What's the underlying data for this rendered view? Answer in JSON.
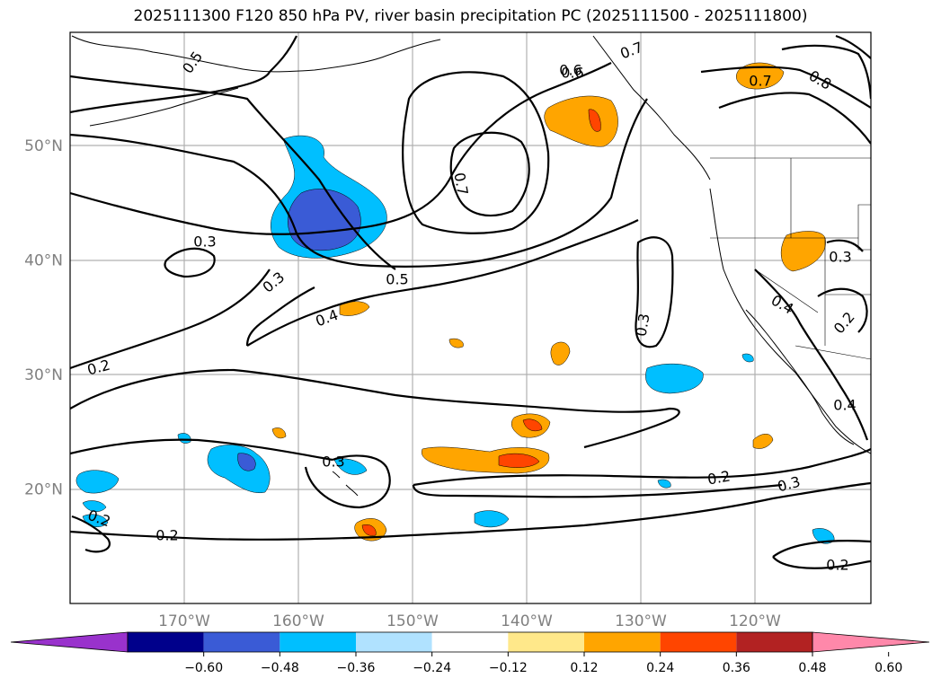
{
  "title": "2025111300 F120 850 hPa PV, river basin precipitation PC (2025111500 - 2025111800)",
  "lat_labels": [
    {
      "text": "50°N",
      "lat": 50
    },
    {
      "text": "40°N",
      "lat": 40
    },
    {
      "text": "30°N",
      "lat": 30
    },
    {
      "text": "20°N",
      "lat": 20
    }
  ],
  "lon_labels": [
    {
      "text": "170°W",
      "lon": -170
    },
    {
      "text": "160°W",
      "lon": -160
    },
    {
      "text": "150°W",
      "lon": -150
    },
    {
      "text": "140°W",
      "lon": -140
    },
    {
      "text": "130°W",
      "lon": -130
    },
    {
      "text": "120°W",
      "lon": -120
    }
  ],
  "contour_labels": [
    "0.5",
    "0.7",
    "0.6",
    "0.7",
    "0.8",
    "0.7",
    "0.3",
    "0.3",
    "0.5",
    "0.4",
    "0.2",
    "0.3",
    "0.4",
    "0.2",
    "0.3",
    "0.2",
    "0.3",
    "0.2",
    "0.2",
    "0.2",
    "0.4",
    "0.3",
    "0.6"
  ],
  "colorbar": {
    "ticks": [
      "−0.60",
      "−0.48",
      "−0.36",
      "−0.24",
      "−0.12",
      "0.12",
      "0.24",
      "0.36",
      "0.48",
      "0.60"
    ],
    "colors": [
      "#9932cc",
      "#00008b",
      "#3a5bd6",
      "#00bfff",
      "#b0e2ff",
      "#ffffff",
      "#ffe88a",
      "#ffa500",
      "#ff4500",
      "#b22222",
      "#ff88aa"
    ]
  }
}
